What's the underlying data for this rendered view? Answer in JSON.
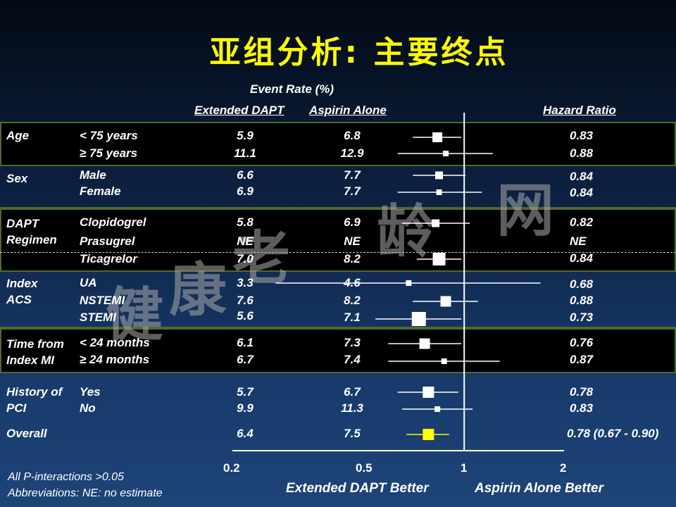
{
  "title": "亚组分析: 主要终点",
  "headers": {
    "event_rate": "Event Rate (%)",
    "extended_dapt": "Extended DAPT",
    "aspirin_alone": "Aspirin Alone",
    "hazard_ratio": "Hazard Ratio"
  },
  "groups": [
    {
      "label": "Age",
      "rows": [
        {
          "label": "< 75 years",
          "dapt": "5.9",
          "aspirin": "6.8",
          "hr": "0.83"
        },
        {
          "label": "≥ 75 years",
          "dapt": "11.1",
          "aspirin": "12.9",
          "hr": "0.88"
        }
      ]
    },
    {
      "label": "Sex",
      "rows": [
        {
          "label": "Male",
          "dapt": "6.6",
          "aspirin": "7.7",
          "hr": "0.84"
        },
        {
          "label": "Female",
          "dapt": "6.9",
          "aspirin": "7.7",
          "hr": "0.84"
        }
      ]
    },
    {
      "label": "DAPT Regimen",
      "rows": [
        {
          "label": "Clopidogrel",
          "dapt": "5.8",
          "aspirin": "6.9",
          "hr": "0.82"
        },
        {
          "label": "Prasugrel",
          "dapt": "NE",
          "aspirin": "NE",
          "hr": "NE"
        },
        {
          "label": "Ticagrelor",
          "dapt": "7.0",
          "aspirin": "8.2",
          "hr": "0.84"
        }
      ]
    },
    {
      "label": "Index ACS",
      "rows": [
        {
          "label": "UA",
          "dapt": "3.3",
          "aspirin": "4.6",
          "hr": "0.68"
        },
        {
          "label": "NSTEMI",
          "dapt": "7.6",
          "aspirin": "8.2",
          "hr": "0.88"
        },
        {
          "label": "STEMI",
          "dapt": "5.6",
          "aspirin": "7.1",
          "hr": "0.73"
        }
      ]
    },
    {
      "label": "Time from Index MI",
      "rows": [
        {
          "label": "< 24 months",
          "dapt": "6.1",
          "aspirin": "7.3",
          "hr": "0.76"
        },
        {
          "label": "≥ 24 months",
          "dapt": "6.7",
          "aspirin": "7.4",
          "hr": "0.87"
        }
      ]
    },
    {
      "label": "History of PCI",
      "rows": [
        {
          "label": "Yes",
          "dapt": "5.7",
          "aspirin": "6.7",
          "hr": "0.78"
        },
        {
          "label": "No",
          "dapt": "9.9",
          "aspirin": "11.3",
          "hr": "0.83"
        }
      ]
    }
  ],
  "overall": {
    "label": "Overall",
    "dapt": "6.4",
    "aspirin": "7.5",
    "hr": "0.78 (0.67 - 0.90)"
  },
  "axis": {
    "ticks": [
      "0.2",
      "0.5",
      "1",
      "2"
    ]
  },
  "better_left": "Extended DAPT Better",
  "better_right": "Aspirin Alone Better",
  "footnotes": {
    "line1": "All P-interactions >0.05",
    "line2": "Abbreviations: NE: no estimate"
  },
  "watermark": [
    "健",
    "康",
    "老",
    "龄",
    "网"
  ],
  "chart_data": {
    "type": "forest",
    "xscale": "log",
    "xlim": [
      0.2,
      2
    ],
    "reference": 1,
    "points": [
      {
        "name": "< 75 years",
        "hr": 0.83,
        "lo": 0.7,
        "hi": 0.98
      },
      {
        "name": "≥ 75 years",
        "hr": 0.88,
        "lo": 0.63,
        "hi": 1.22
      },
      {
        "name": "Male",
        "hr": 0.84,
        "lo": 0.7,
        "hi": 1.01
      },
      {
        "name": "Female",
        "hr": 0.84,
        "lo": 0.63,
        "hi": 1.13
      },
      {
        "name": "Clopidogrel",
        "hr": 0.82,
        "lo": 0.65,
        "hi": 1.04
      },
      {
        "name": "Ticagrelor",
        "hr": 0.84,
        "lo": 0.72,
        "hi": 0.98
      },
      {
        "name": "UA",
        "hr": 0.68,
        "lo": 0.27,
        "hi": 1.7
      },
      {
        "name": "NSTEMI",
        "hr": 0.88,
        "lo": 0.7,
        "hi": 1.1
      },
      {
        "name": "STEMI",
        "hr": 0.73,
        "lo": 0.54,
        "hi": 0.98
      },
      {
        "name": "< 24 months",
        "hr": 0.76,
        "lo": 0.59,
        "hi": 0.98
      },
      {
        "name": "≥ 24 months",
        "hr": 0.87,
        "lo": 0.59,
        "hi": 1.28
      },
      {
        "name": "Yes",
        "hr": 0.78,
        "lo": 0.63,
        "hi": 0.96
      },
      {
        "name": "No",
        "hr": 0.83,
        "lo": 0.65,
        "hi": 1.06
      },
      {
        "name": "Overall",
        "hr": 0.78,
        "lo": 0.67,
        "hi": 0.9,
        "highlight": "#ffff00"
      }
    ],
    "colors": {
      "markers": "#ffffff",
      "overall": "#ffff00"
    }
  }
}
